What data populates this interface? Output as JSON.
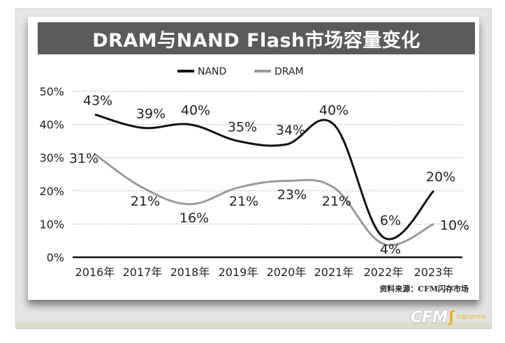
{
  "title": "DRAM与NAND Flash市场容量变化",
  "source": "资料来源：CFM闪存市场",
  "logo": {
    "text": "CFM",
    "mark": "中国闪存市场"
  },
  "chart_data": {
    "type": "line",
    "categories": [
      "2016年",
      "2017年",
      "2018年",
      "2019年",
      "2020年",
      "2021年",
      "2022年",
      "2023年"
    ],
    "series": [
      {
        "name": "NAND",
        "color": "#111111",
        "values": [
          43,
          39,
          40,
          35,
          34,
          40,
          6,
          20
        ]
      },
      {
        "name": "DRAM",
        "color": "#9a9a9a",
        "values": [
          31,
          21,
          16,
          21,
          23,
          21,
          4,
          10
        ]
      }
    ],
    "y_ticks": [
      "0%",
      "10%",
      "20%",
      "30%",
      "40%",
      "50%"
    ],
    "labels": {
      "NAND": [
        "43%",
        "39%",
        "40%",
        "35%",
        "34%",
        "40%",
        "6%",
        "20%"
      ],
      "DRAM": [
        "31%",
        "21%",
        "16%",
        "21%",
        "23%",
        "21%",
        "4%",
        "10%"
      ]
    },
    "ylim": [
      0,
      50
    ],
    "grid": true,
    "legend": "top-center"
  }
}
